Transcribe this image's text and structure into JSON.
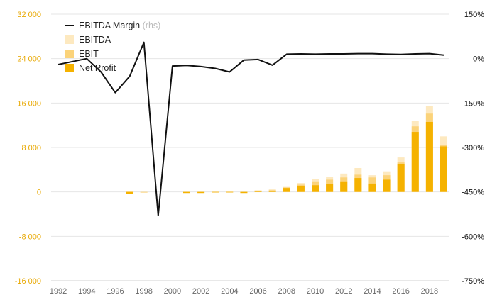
{
  "chart_data": {
    "type": "bar+line",
    "title": "",
    "xlabel": "",
    "ylabel_left": "",
    "ylabel_right": "",
    "ylim_left": [
      -16000,
      32000
    ],
    "ylim_right": [
      -750,
      150
    ],
    "y_left_ticks": [
      32000,
      24000,
      16000,
      8000,
      0,
      -8000,
      -16000
    ],
    "y_left_tick_labels": [
      "32 000",
      "24 000",
      "16 000",
      "8 000",
      "0",
      "-8 000",
      "-16 000"
    ],
    "y_right_ticks": [
      150,
      0,
      -150,
      -300,
      -450,
      -600,
      -750
    ],
    "y_right_tick_labels": [
      "150%",
      "0%",
      "-150%",
      "-300%",
      "-450%",
      "-600%",
      "-750%"
    ],
    "x_tick_labels": [
      "1992",
      "1994",
      "1996",
      "1998",
      "2000",
      "2002",
      "2004",
      "2006",
      "2008",
      "2010",
      "2012",
      "2014",
      "2016",
      "2018"
    ],
    "years": [
      1992,
      1993,
      1994,
      1995,
      1996,
      1997,
      1998,
      1999,
      2000,
      2001,
      2002,
      2003,
      2004,
      2005,
      2006,
      2007,
      2008,
      2009,
      2010,
      2011,
      2012,
      2013,
      2014,
      2015,
      2016,
      2017,
      2018,
      2019
    ],
    "legend": {
      "line_label": "EBITDA Margin",
      "line_note": " (rhs)",
      "ebitda_label": "EBITDA",
      "ebit_label": "EBIT",
      "net_label": "Net Profit"
    },
    "colors": {
      "ebitda": "#fde9c0",
      "ebit": "#fbd37a",
      "net": "#f5b200",
      "line": "#111111",
      "left_axis_text": "#e8a800",
      "right_axis_text": "#111111",
      "x_axis_text": "#666666",
      "grid": "#e6e6e6"
    },
    "series": [
      {
        "name": "EBITDA",
        "axis": "left",
        "values": [
          null,
          null,
          null,
          null,
          null,
          80,
          -150,
          0,
          0,
          -100,
          -100,
          50,
          80,
          -80,
          300,
          450,
          900,
          1600,
          2300,
          2700,
          3300,
          4300,
          3000,
          3700,
          6200,
          12800,
          15500,
          10000
        ]
      },
      {
        "name": "EBIT",
        "axis": "left",
        "values": [
          null,
          null,
          null,
          null,
          null,
          -200,
          -50,
          0,
          0,
          -150,
          -150,
          0,
          0,
          -150,
          200,
          300,
          800,
          1300,
          1900,
          2200,
          2600,
          3100,
          2600,
          3000,
          5300,
          11800,
          14100,
          8500
        ]
      },
      {
        "name": "Net Profit",
        "axis": "left",
        "values": [
          null,
          null,
          null,
          null,
          null,
          -300,
          0,
          0,
          0,
          -200,
          -200,
          -100,
          -50,
          -200,
          100,
          200,
          700,
          1100,
          1200,
          1400,
          1900,
          2500,
          1500,
          2200,
          5000,
          10800,
          12600,
          8200
        ]
      },
      {
        "name": "EBITDA Margin",
        "axis": "right",
        "values": [
          -20,
          -10,
          0,
          -45,
          -115,
          -60,
          55,
          -530,
          -25,
          -23,
          -27,
          -33,
          -45,
          -5,
          -3,
          -22,
          15,
          16,
          15,
          16,
          16,
          17,
          17,
          15,
          14,
          16,
          17,
          12
        ]
      }
    ]
  }
}
